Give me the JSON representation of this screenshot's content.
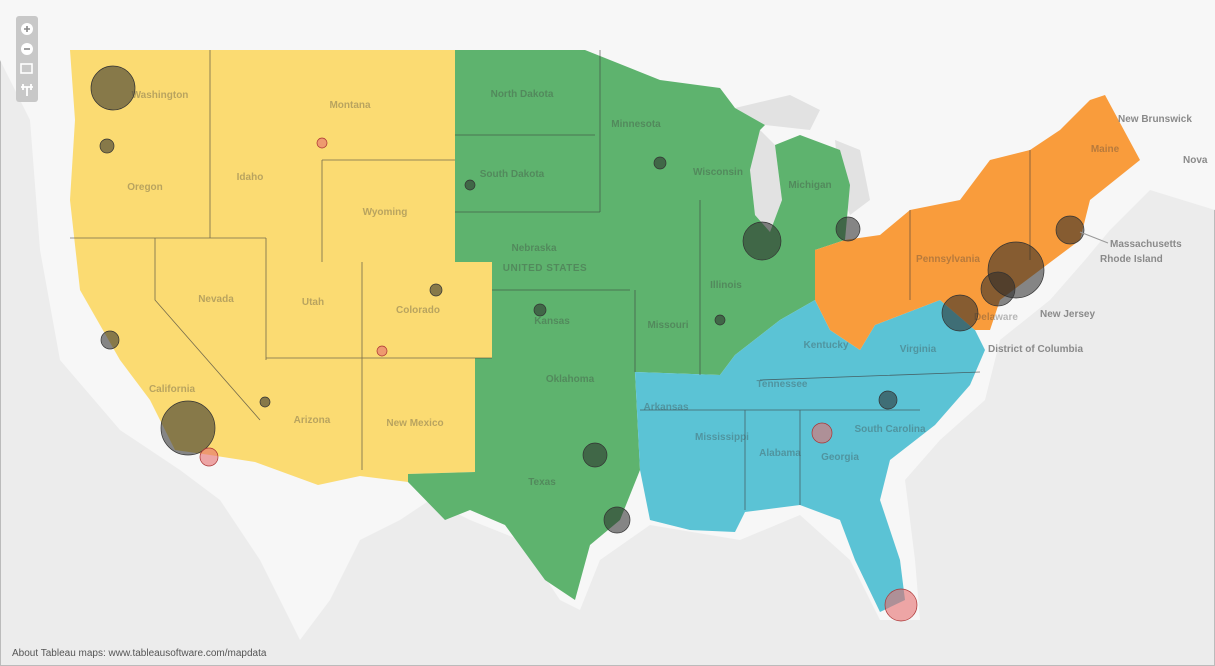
{
  "map": {
    "country_label": "UNITED STATES",
    "state_labels": [
      "Washington",
      "Montana",
      "Oregon",
      "Idaho",
      "Wyoming",
      "Nevada",
      "Utah",
      "Colorado",
      "California",
      "Arizona",
      "New Mexico",
      "North Dakota",
      "South Dakota",
      "Nebraska",
      "Kansas",
      "Oklahoma",
      "Texas",
      "Minnesota",
      "Wisconsin",
      "Michigan",
      "Illinois",
      "Missouri",
      "Arkansas",
      "Kentucky",
      "Tennessee",
      "Mississippi",
      "Alabama",
      "Georgia",
      "South Carolina",
      "Virginia",
      "Pennsylvania",
      "Maine",
      "Delaware"
    ],
    "callout_labels": [
      "Massachusetts",
      "Rhode Island",
      "New Jersey",
      "District of Columbia"
    ],
    "province_labels": [
      "New Brunswick",
      "Nova"
    ]
  },
  "attribution": "About Tableau maps: www.tableausoftware.com/mapdata"
}
